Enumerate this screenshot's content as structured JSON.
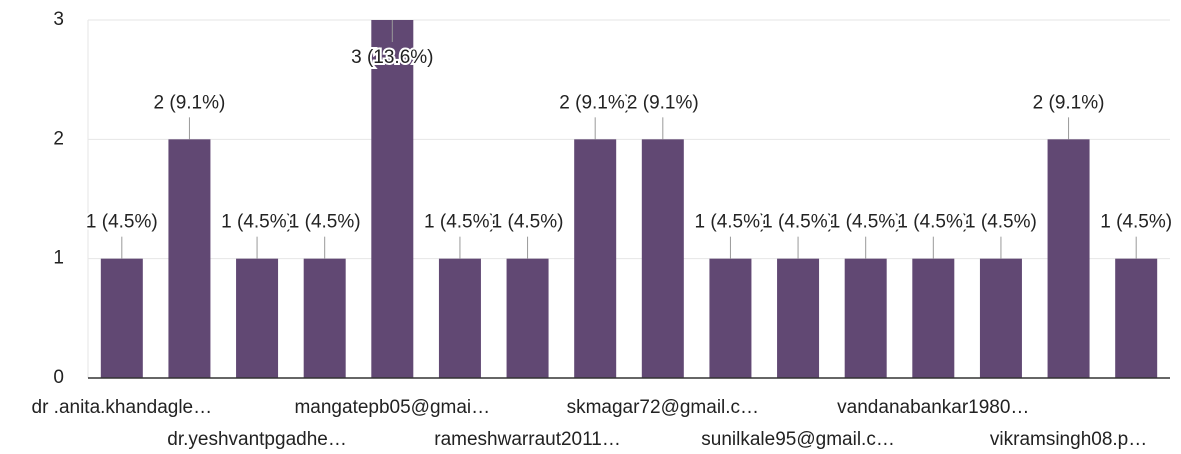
{
  "chart_data": {
    "type": "bar",
    "categories": [
      "dr .anita.khandagle…",
      null,
      "dr.yeshvantpgadhe…",
      null,
      "mangatepb05@gmai…",
      null,
      "rameshwarraut2011…",
      null,
      "skmagar72@gmail.c…",
      null,
      "sunilkale95@gmail.c…",
      null,
      "vandanabankar1980…",
      null,
      "vikramsingh08.p…",
      null
    ],
    "values": [
      1,
      2,
      1,
      1,
      3,
      1,
      1,
      2,
      2,
      1,
      1,
      1,
      1,
      1,
      2,
      1
    ],
    "value_labels": [
      "1 (4.5%)",
      "2 (9.1%)",
      "1 (4.5%)",
      "1 (4.5%)",
      "3 (13.6%)",
      "1 (4.5%)",
      "1 (4.5%)",
      "2 (9.1%)",
      "2 (9.1%)",
      "1 (4.5%)",
      "1 (4.5%)",
      "1 (4.5%)",
      "1 (4.5%)",
      "1 (4.5%)",
      "2 (9.1%)",
      "1 (4.5%)"
    ],
    "color": "#614873",
    "ylim": [
      0,
      3
    ],
    "yticks": [
      0,
      1,
      2,
      3
    ],
    "grid": true
  }
}
